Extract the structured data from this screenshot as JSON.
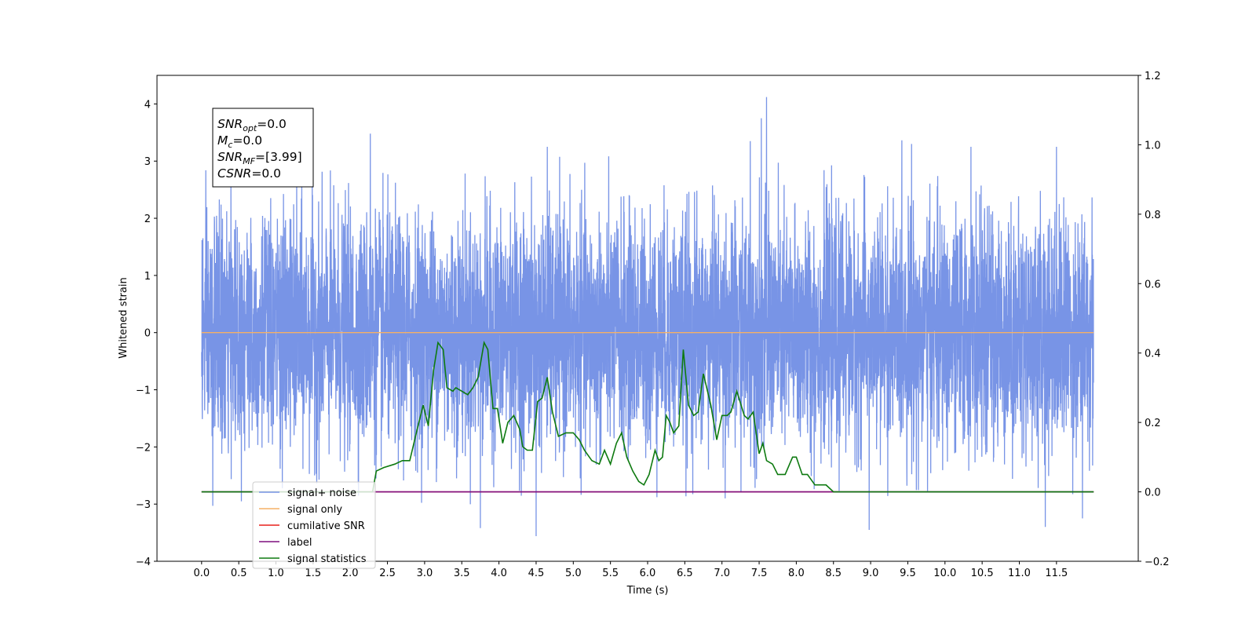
{
  "chart_data": {
    "type": "line",
    "xlabel": "Time (s)",
    "ylabel_left": "Whitened strain",
    "ylabel_right": "",
    "xlim": [
      -0.6,
      12.6
    ],
    "ylim_left": [
      -4,
      4.5
    ],
    "ylim_right": [
      -0.2,
      1.2
    ],
    "x_ticks": [
      0.0,
      0.5,
      1.0,
      1.5,
      2.0,
      2.5,
      3.0,
      3.5,
      4.0,
      4.5,
      5.0,
      5.5,
      6.0,
      6.5,
      7.0,
      7.5,
      8.0,
      8.5,
      9.0,
      9.5,
      10.0,
      10.5,
      11.0,
      11.5
    ],
    "x_tick_labels": [
      "0.0",
      "0.5",
      "1.0",
      "1.5",
      "2.0",
      "2.5",
      "3.0",
      "3.5",
      "4.0",
      "4.5",
      "5.0",
      "5.5",
      "6.0",
      "6.5",
      "7.0",
      "7.5",
      "8.0",
      "8.5",
      "9.0",
      "9.5",
      "10.0",
      "10.5",
      "11.0",
      "11.5"
    ],
    "y_left_ticks": [
      -4,
      -3,
      -2,
      -1,
      0,
      1,
      2,
      3,
      4
    ],
    "y_left_tick_labels": [
      "−4",
      "−3",
      "−2",
      "−1",
      "0",
      "1",
      "2",
      "3",
      "4"
    ],
    "y_right_ticks": [
      -0.2,
      0.0,
      0.2,
      0.4,
      0.6,
      0.8,
      1.0,
      1.2
    ],
    "y_right_tick_labels": [
      "−0.2",
      "0.0",
      "0.2",
      "0.4",
      "0.6",
      "0.8",
      "1.0",
      "1.2"
    ],
    "grid": false,
    "legend_location": "lower-left",
    "annotation": [
      {
        "base": "SNR",
        "sub": "opt",
        "value": "=0.0"
      },
      {
        "base": "M",
        "sub": "c",
        "value": "=0.0"
      },
      {
        "base": "SNR",
        "sub": "MF",
        "value": "=[3.99]"
      },
      {
        "base": "CSNR",
        "sub": "",
        "value": "=0.0"
      }
    ],
    "series": [
      {
        "name": "signal+ noise",
        "axis": "left",
        "color": "#7894e6",
        "kind": "noise",
        "x_range": [
          0.0,
          12.0
        ],
        "sample_rate_hz": 512,
        "std": 1.0,
        "peaks": [
          {
            "x": 2.27,
            "y": 3.48
          },
          {
            "x": 4.65,
            "y": 3.25
          },
          {
            "x": 7.38,
            "y": 3.35
          },
          {
            "x": 7.53,
            "y": 3.75
          },
          {
            "x": 7.6,
            "y": 4.12
          },
          {
            "x": 9.55,
            "y": 3.3
          },
          {
            "x": 10.35,
            "y": 3.25
          },
          {
            "x": 11.5,
            "y": 3.25
          },
          {
            "x": 3.75,
            "y": -3.42
          },
          {
            "x": 4.5,
            "y": -3.56
          },
          {
            "x": 8.98,
            "y": -3.45
          },
          {
            "x": 11.35,
            "y": -3.4
          },
          {
            "x": 0.15,
            "y": -3.03
          },
          {
            "x": 11.85,
            "y": -3.25
          }
        ]
      },
      {
        "name": "signal only",
        "axis": "left",
        "color": "#f5b066",
        "x": [
          0.0,
          12.0
        ],
        "values": [
          0.0,
          0.0
        ]
      },
      {
        "name": "cumilative SNR",
        "axis": "right",
        "color": "#e8211c",
        "x": [
          0.0,
          12.0
        ],
        "values": [
          0.0,
          0.0
        ]
      },
      {
        "name": "label",
        "axis": "right",
        "color": "#7f0f7e",
        "x": [
          0.0,
          12.0
        ],
        "values": [
          0.0,
          0.0
        ]
      },
      {
        "name": "signal statistics",
        "axis": "right",
        "color": "#0e7a10",
        "x": [
          0.0,
          2.3,
          2.35,
          2.45,
          2.6,
          2.7,
          2.8,
          2.9,
          2.98,
          3.05,
          3.12,
          3.18,
          3.25,
          3.3,
          3.38,
          3.42,
          3.5,
          3.58,
          3.65,
          3.72,
          3.8,
          3.85,
          3.92,
          3.98,
          4.05,
          4.12,
          4.2,
          4.28,
          4.32,
          4.38,
          4.45,
          4.52,
          4.58,
          4.65,
          4.72,
          4.8,
          4.9,
          5.0,
          5.08,
          5.15,
          5.25,
          5.35,
          5.42,
          5.5,
          5.58,
          5.65,
          5.72,
          5.8,
          5.88,
          5.95,
          6.02,
          6.1,
          6.15,
          6.2,
          6.25,
          6.3,
          6.35,
          6.42,
          6.48,
          6.55,
          6.62,
          6.68,
          6.75,
          6.85,
          6.93,
          7.0,
          7.07,
          7.12,
          7.2,
          7.3,
          7.35,
          7.42,
          7.5,
          7.55,
          7.6,
          7.68,
          7.75,
          7.85,
          7.95,
          8.0,
          8.08,
          8.15,
          8.25,
          8.32,
          8.4,
          8.5,
          8.6,
          12.0
        ],
        "values": [
          0.0,
          0.0,
          0.06,
          0.07,
          0.08,
          0.09,
          0.09,
          0.18,
          0.25,
          0.19,
          0.35,
          0.43,
          0.41,
          0.3,
          0.29,
          0.3,
          0.29,
          0.28,
          0.3,
          0.33,
          0.43,
          0.41,
          0.24,
          0.24,
          0.14,
          0.2,
          0.22,
          0.18,
          0.13,
          0.12,
          0.12,
          0.26,
          0.27,
          0.33,
          0.23,
          0.16,
          0.17,
          0.17,
          0.15,
          0.12,
          0.09,
          0.08,
          0.12,
          0.08,
          0.14,
          0.17,
          0.1,
          0.06,
          0.03,
          0.02,
          0.05,
          0.12,
          0.09,
          0.1,
          0.22,
          0.2,
          0.17,
          0.19,
          0.41,
          0.25,
          0.22,
          0.23,
          0.34,
          0.25,
          0.15,
          0.22,
          0.22,
          0.23,
          0.29,
          0.22,
          0.21,
          0.23,
          0.11,
          0.14,
          0.09,
          0.08,
          0.05,
          0.05,
          0.1,
          0.1,
          0.05,
          0.05,
          0.02,
          0.02,
          0.02,
          0.0,
          0.0,
          0.0
        ]
      }
    ]
  }
}
